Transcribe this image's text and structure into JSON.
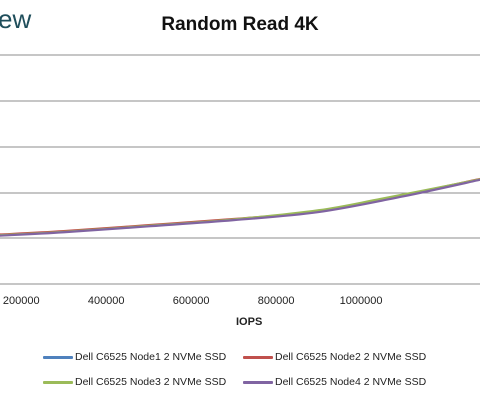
{
  "logo_fragment": "ew",
  "chart_data": {
    "type": "line",
    "title": "Random Read 4K",
    "xlabel": "IOPS",
    "ylabel": "",
    "x_ticks": [
      200000,
      400000,
      600000,
      800000,
      1000000
    ],
    "x_tick_labels": [
      "200000",
      "400000",
      "600000",
      "800000",
      "1000000"
    ],
    "xlim": [
      150000,
      1280000
    ],
    "ylim": [
      0,
      1
    ],
    "grid": true,
    "legend_position": "bottom",
    "series": [
      {
        "name": "Dell C6525 Node1 2 NVMe SSD",
        "color": "#4f81bd",
        "points": [
          [
            150000,
            0.214
          ],
          [
            300000,
            0.229
          ],
          [
            500000,
            0.255
          ],
          [
            700000,
            0.282
          ],
          [
            900000,
            0.316
          ],
          [
            1100000,
            0.386
          ],
          [
            1280000,
            0.457
          ]
        ]
      },
      {
        "name": "Dell C6525 Node2 2 NVMe SSD",
        "color": "#c0504d",
        "points": [
          [
            150000,
            0.216
          ],
          [
            300000,
            0.231
          ],
          [
            500000,
            0.257
          ],
          [
            700000,
            0.284
          ],
          [
            900000,
            0.318
          ],
          [
            1100000,
            0.388
          ],
          [
            1280000,
            0.459
          ]
        ]
      },
      {
        "name": "Dell C6525 Node3 2 NVMe SSD",
        "color": "#9bbb59",
        "points": [
          [
            150000,
            0.213
          ],
          [
            300000,
            0.228
          ],
          [
            500000,
            0.254
          ],
          [
            700000,
            0.282
          ],
          [
            900000,
            0.322
          ],
          [
            1050000,
            0.373
          ],
          [
            1280000,
            0.457
          ]
        ]
      },
      {
        "name": "Dell C6525 Node4 2 NVMe SSD",
        "color": "#8064a2",
        "points": [
          [
            150000,
            0.211
          ],
          [
            300000,
            0.226
          ],
          [
            500000,
            0.252
          ],
          [
            700000,
            0.279
          ],
          [
            900000,
            0.314
          ],
          [
            1100000,
            0.383
          ],
          [
            1280000,
            0.455
          ]
        ]
      }
    ]
  }
}
